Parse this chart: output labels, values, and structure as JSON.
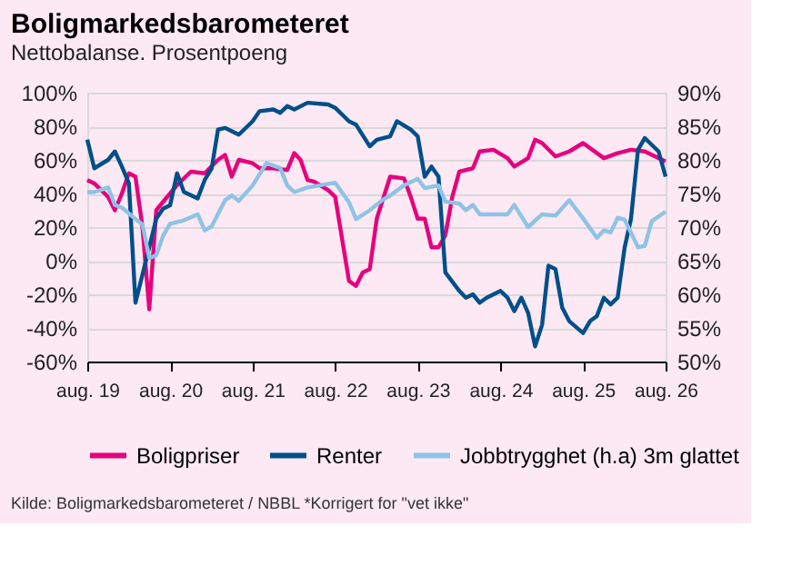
{
  "chart_data": {
    "type": "line",
    "title": "Boligmarkedsbarometeret",
    "subtitle": "Nettobalanse. Prosentpoeng",
    "annotations": [
      "Kilde: Boligmarkedsbarometeret / NBBL *Korrigert for \"vet ikke\""
    ],
    "xlim": [
      "2019-08",
      "2026-08"
    ],
    "xticks": [
      {
        "value": "2019-08",
        "label": "aug. 19"
      },
      {
        "value": "2020-08",
        "label": "aug. 20"
      },
      {
        "value": "2021-08",
        "label": "aug. 21"
      },
      {
        "value": "2022-08",
        "label": "aug. 22"
      },
      {
        "value": "2023-08",
        "label": "aug. 23"
      },
      {
        "value": "2024-08",
        "label": "aug. 24"
      },
      {
        "value": "2025-08",
        "label": "aug. 25"
      },
      {
        "value": "2026-08",
        "label": "aug. 26"
      }
    ],
    "ylim": [
      -60,
      100
    ],
    "yticks": [
      {
        "value": -60,
        "label": "-60%"
      },
      {
        "value": -40,
        "label": "-40%"
      },
      {
        "value": -20,
        "label": "-20%"
      },
      {
        "value": 0,
        "label": "0%"
      },
      {
        "value": 20,
        "label": "20%"
      },
      {
        "value": 40,
        "label": "40%"
      },
      {
        "value": 60,
        "label": "60%"
      },
      {
        "value": 80,
        "label": "80%"
      },
      {
        "value": 100,
        "label": "100%"
      }
    ],
    "y2lim": [
      50,
      90
    ],
    "y2ticks": [
      {
        "value": 50,
        "label": "50%"
      },
      {
        "value": 55,
        "label": "55%"
      },
      {
        "value": 60,
        "label": "60%"
      },
      {
        "value": 65,
        "label": "65%"
      },
      {
        "value": 70,
        "label": "70%"
      },
      {
        "value": 75,
        "label": "75%"
      },
      {
        "value": 80,
        "label": "80%"
      },
      {
        "value": 85,
        "label": "85%"
      },
      {
        "value": 90,
        "label": "90%"
      }
    ],
    "grid": "y",
    "legend": "bottom",
    "line_style": "solid",
    "series": [
      {
        "name": "Boligpriser",
        "color": "#e6007e",
        "x": [
          "2019-08",
          "2019-09",
          "2019-11",
          "2019-12",
          "2020-01",
          "2020-02",
          "2020-03",
          "2020-04",
          "2020-05",
          "2020-06",
          "2020-07",
          "2020-09",
          "2020-11",
          "2021-01",
          "2021-03",
          "2021-04",
          "2021-05",
          "2021-06",
          "2021-08",
          "2021-09",
          "2021-11",
          "2022-01",
          "2022-02",
          "2022-03",
          "2022-04",
          "2022-05",
          "2022-07",
          "2022-08",
          "2022-10",
          "2022-11",
          "2022-12",
          "2023-01",
          "2023-02",
          "2023-04",
          "2023-06",
          "2023-07",
          "2023-08",
          "2023-09",
          "2023-10",
          "2023-11",
          "2023-12",
          "2024-01",
          "2024-02",
          "2024-04",
          "2024-05",
          "2024-07",
          "2024-09",
          "2024-10",
          "2024-12",
          "2025-01",
          "2025-02",
          "2025-04",
          "2025-06",
          "2025-08",
          "2025-11",
          "2026-01",
          "2026-03",
          "2026-05",
          "2026-08"
        ],
        "values": [
          48,
          46,
          38,
          30,
          40,
          52,
          50,
          20,
          -29,
          30,
          35,
          45,
          53,
          52,
          60,
          63,
          50,
          60,
          58,
          55,
          55,
          54,
          64,
          60,
          48,
          47,
          42,
          38,
          -12,
          -15,
          -7,
          -5,
          25,
          50,
          49,
          38,
          25,
          25,
          8,
          8,
          15,
          38,
          53,
          55,
          65,
          66,
          61,
          56,
          61,
          72,
          70,
          62,
          65,
          70,
          61,
          64,
          66,
          65,
          59
        ]
      },
      {
        "name": "Renter",
        "color": "#004f8a",
        "x": [
          "2019-08",
          "2019-09",
          "2019-11",
          "2019-12",
          "2020-01",
          "2020-02",
          "2020-03",
          "2020-05",
          "2020-06",
          "2020-07",
          "2020-08",
          "2020-09",
          "2020-10",
          "2020-12",
          "2021-01",
          "2021-02",
          "2021-03",
          "2021-04",
          "2021-06",
          "2021-08",
          "2021-09",
          "2021-11",
          "2021-12",
          "2022-01",
          "2022-02",
          "2022-04",
          "2022-07",
          "2022-08",
          "2022-10",
          "2022-11",
          "2023-01",
          "2023-02",
          "2023-04",
          "2023-05",
          "2023-07",
          "2023-08",
          "2023-09",
          "2023-10",
          "2023-11",
          "2023-12",
          "2024-02",
          "2024-03",
          "2024-04",
          "2024-05",
          "2024-06",
          "2024-08",
          "2024-09",
          "2024-10",
          "2024-11",
          "2024-12",
          "2025-01",
          "2025-02",
          "2025-03",
          "2025-04",
          "2025-05",
          "2025-06",
          "2025-08",
          "2025-09",
          "2025-10",
          "2025-11",
          "2025-12",
          "2026-01",
          "2026-02",
          "2026-03",
          "2026-04",
          "2026-05",
          "2026-07",
          "2026-08"
        ],
        "values": [
          72,
          55,
          60,
          65,
          56,
          46,
          -25,
          8,
          25,
          31,
          33,
          52,
          41,
          37,
          48,
          55,
          78,
          79,
          75,
          83,
          89,
          90,
          88,
          92,
          90,
          94,
          93,
          91,
          83,
          81,
          68,
          72,
          74,
          83,
          78,
          74,
          50,
          56,
          50,
          -7,
          -18,
          -22,
          -20,
          -25,
          -22,
          -18,
          -22,
          -30,
          -22,
          -31,
          -51,
          -38,
          -3,
          -5,
          -28,
          -36,
          -43,
          -36,
          -33,
          -22,
          -26,
          -22,
          8,
          25,
          66,
          73,
          65,
          50
        ]
      },
      {
        "name": "Jobbtrygghet (h.a) 3m glattet",
        "color": "#8ec3e6",
        "axis": "y2",
        "x": [
          "2019-08",
          "2019-09",
          "2019-11",
          "2019-12",
          "2020-01",
          "2020-03",
          "2020-04",
          "2020-05",
          "2020-06",
          "2020-07",
          "2020-08",
          "2020-10",
          "2020-12",
          "2021-01",
          "2021-02",
          "2021-04",
          "2021-05",
          "2021-06",
          "2021-08",
          "2021-10",
          "2021-12",
          "2022-01",
          "2022-02",
          "2022-04",
          "2022-08",
          "2022-10",
          "2022-11",
          "2023-01",
          "2023-03",
          "2023-04",
          "2023-06",
          "2023-08",
          "2023-09",
          "2023-11",
          "2023-12",
          "2024-02",
          "2024-03",
          "2024-04",
          "2024-05",
          "2024-09",
          "2024-10",
          "2024-12",
          "2025-02",
          "2025-04",
          "2025-06",
          "2025-08",
          "2025-10",
          "2025-11",
          "2025-12",
          "2026-01",
          "2026-02",
          "2026-04",
          "2026-05",
          "2026-06",
          "2026-08"
        ],
        "values": [
          75.2,
          75.2,
          75.9,
          73.3,
          72.9,
          71.2,
          70.4,
          65.4,
          65.8,
          68.7,
          70.5,
          71,
          71.9,
          69.5,
          70.1,
          74,
          74.7,
          73.9,
          76.2,
          79.5,
          78.8,
          76.2,
          75.2,
          75.9,
          76.6,
          73.7,
          71.2,
          72.5,
          74.1,
          74.7,
          76.2,
          77.2,
          75.8,
          76.2,
          73.8,
          73.5,
          72.5,
          73.3,
          71.9,
          71.9,
          73.3,
          70,
          71.9,
          71.7,
          74,
          71.3,
          68.4,
          69.5,
          69.2,
          71.4,
          71.1,
          67,
          67.2,
          70.9,
          72.3
        ]
      }
    ]
  }
}
